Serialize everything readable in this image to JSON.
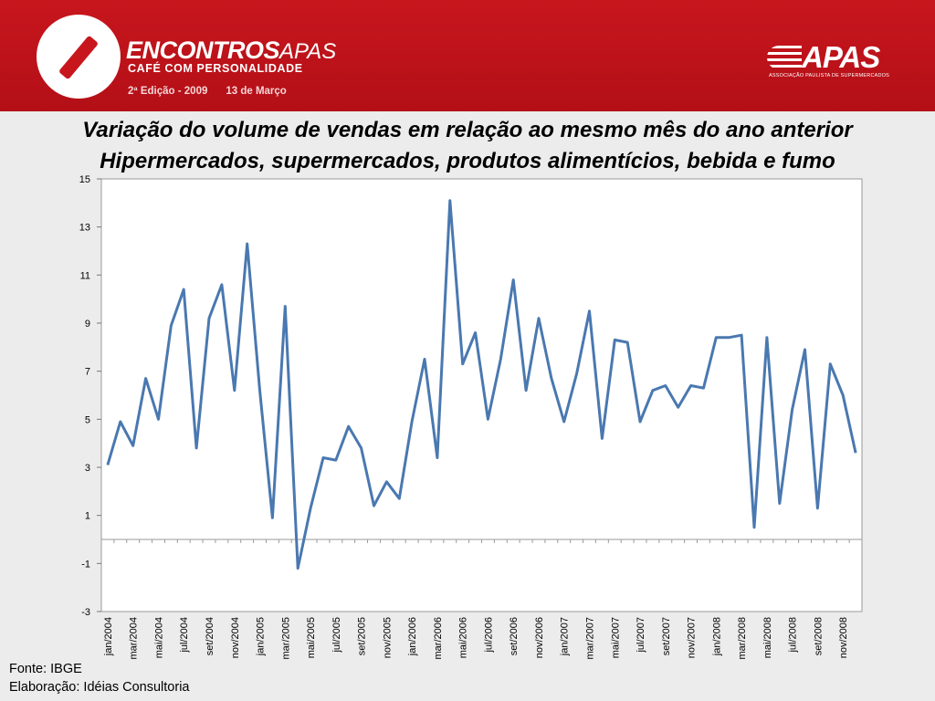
{
  "header": {
    "brand": "ENCONTROS",
    "brand_suffix": "APAS",
    "tagline": "CAFÉ COM PERSONALIDADE",
    "edition": "2ª Edição - 2009",
    "date": "13 de Março",
    "partner_logo": "APAS",
    "partner_subtitle": "ASSOCIAÇÃO PAULISTA DE SUPERMERCADOS"
  },
  "title_line1": "Variação do volume de vendas em relação ao mesmo mês do ano anterior",
  "title_line2": "Hipermercados, supermercados, produtos alimentícios, bebida e fumo",
  "footer": {
    "source": "Fonte: IBGE",
    "elaboration": "Elaboração: Idéias Consultoria"
  },
  "colors": {
    "banner": "#c8161d",
    "line": "#4a78b0",
    "plot_background": "#ffffff"
  },
  "chart_data": {
    "type": "line",
    "title": "",
    "xlabel": "",
    "ylabel": "",
    "ylim": [
      -3,
      15
    ],
    "yticks": [
      -3,
      -1,
      1,
      3,
      5,
      7,
      9,
      11,
      13,
      15
    ],
    "grid": false,
    "legend": "none",
    "x_tick_labels": [
      "jan/2004",
      "mar/2004",
      "mai/2004",
      "jul/2004",
      "set/2004",
      "nov/2004",
      "jan/2005",
      "mar/2005",
      "mai/2005",
      "jul/2005",
      "set/2005",
      "nov/2005",
      "jan/2006",
      "mar/2006",
      "mai/2006",
      "jul/2006",
      "set/2006",
      "nov/2006",
      "jan/2007",
      "mar/2007",
      "mai/2007",
      "jul/2007",
      "set/2007",
      "nov/2007",
      "jan/2008",
      "mar/2008",
      "mai/2008",
      "jul/2008",
      "set/2008",
      "nov/2008"
    ],
    "categories": [
      "jan/2004",
      "fev/2004",
      "mar/2004",
      "abr/2004",
      "mai/2004",
      "jun/2004",
      "jul/2004",
      "ago/2004",
      "set/2004",
      "out/2004",
      "nov/2004",
      "dez/2004",
      "jan/2005",
      "fev/2005",
      "mar/2005",
      "abr/2005",
      "mai/2005",
      "jun/2005",
      "jul/2005",
      "ago/2005",
      "set/2005",
      "out/2005",
      "nov/2005",
      "dez/2005",
      "jan/2006",
      "fev/2006",
      "mar/2006",
      "abr/2006",
      "mai/2006",
      "jun/2006",
      "jul/2006",
      "ago/2006",
      "set/2006",
      "out/2006",
      "nov/2006",
      "dez/2006",
      "jan/2007",
      "fev/2007",
      "mar/2007",
      "abr/2007",
      "mai/2007",
      "jun/2007",
      "jul/2007",
      "ago/2007",
      "set/2007",
      "out/2007",
      "nov/2007",
      "dez/2007",
      "jan/2008",
      "fev/2008",
      "mar/2008",
      "abr/2008",
      "mai/2008",
      "jun/2008",
      "jul/2008",
      "ago/2008",
      "set/2008",
      "out/2008",
      "nov/2008",
      "dez/2008"
    ],
    "series": [
      {
        "values": [
          3.1,
          4.9,
          3.9,
          6.7,
          5.0,
          8.9,
          10.4,
          3.8,
          9.2,
          10.6,
          6.2,
          12.3,
          6.2,
          0.9,
          9.7,
          -1.2,
          1.3,
          3.4,
          3.3,
          4.7,
          3.8,
          1.4,
          2.4,
          1.7,
          4.9,
          7.5,
          3.4,
          14.1,
          7.3,
          8.6,
          5.0,
          7.5,
          10.8,
          6.2,
          9.2,
          6.7,
          4.9,
          6.9,
          9.5,
          4.2,
          8.3,
          8.2,
          4.9,
          6.2,
          6.4,
          5.5,
          6.4,
          6.3,
          8.4,
          8.4,
          8.5,
          0.5,
          8.4,
          1.5,
          5.4,
          7.9,
          1.3,
          7.3,
          6.0,
          3.6
        ]
      }
    ]
  }
}
